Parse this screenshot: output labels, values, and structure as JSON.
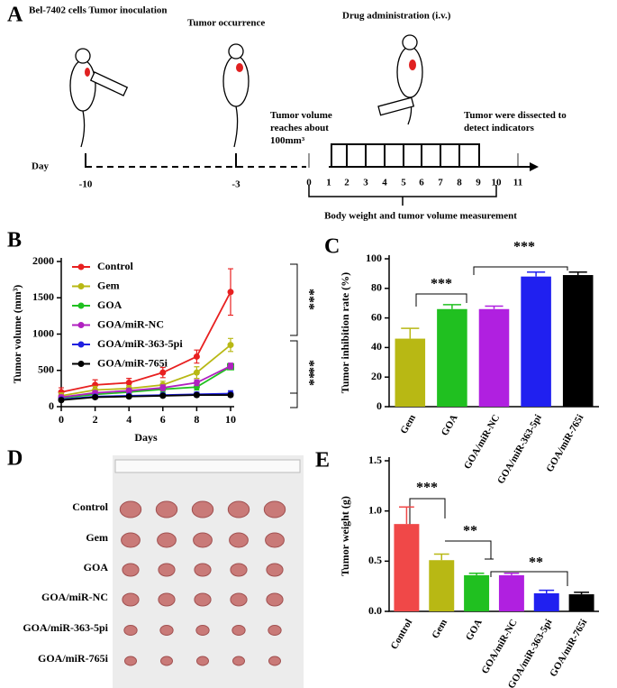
{
  "timeline": {
    "label": "A",
    "inoculation": "Bel-7402 cells Tumor inoculation",
    "occurrence": "Tumor occurrence",
    "administration": "Drug administration (i.v.)",
    "reach": "Tumor volume reaches about 100mm³",
    "dissect": "Tumor were dissected to detect indicators",
    "day_label": "Day",
    "pre_days": [
      "-10",
      "-3"
    ],
    "days": [
      0,
      1,
      2,
      3,
      4,
      5,
      6,
      7,
      8,
      9,
      10,
      11
    ],
    "measure": "Body weight and tumor volume measurement"
  },
  "photo": {
    "label": "D",
    "rows": [
      "Control",
      "Gem",
      "GOA",
      "GOA/miR-NC",
      "GOA/miR-363-5pi",
      "GOA/miR-765i"
    ]
  },
  "chart_data": [
    {
      "type": "line",
      "label": "B",
      "xlabel": "Days",
      "ylabel": "Tumor volume (mm³)",
      "x": [
        0,
        2,
        4,
        6,
        8,
        10
      ],
      "xlim": [
        0,
        10
      ],
      "xticks": [
        0,
        2,
        4,
        6,
        8,
        10
      ],
      "ylim": [
        0,
        2000
      ],
      "yticks": [
        0,
        500,
        1000,
        1500,
        2000
      ],
      "legend": "top-left",
      "series": [
        {
          "name": "Control",
          "color": "#e82020",
          "values": [
            200,
            300,
            330,
            470,
            690,
            1580
          ],
          "errors": [
            60,
            70,
            60,
            70,
            90,
            320
          ]
        },
        {
          "name": "Gem",
          "color": "#b8b814",
          "values": [
            150,
            230,
            250,
            300,
            470,
            850
          ],
          "errors": [
            40,
            50,
            40,
            50,
            80,
            90
          ]
        },
        {
          "name": "GOA",
          "color": "#20c020",
          "values": [
            120,
            170,
            200,
            240,
            270,
            550
          ],
          "errors": [
            30,
            30,
            30,
            40,
            40,
            40
          ]
        },
        {
          "name": "GOA/miR-NC",
          "color": "#b020c0",
          "values": [
            130,
            190,
            220,
            260,
            330,
            560
          ],
          "errors": [
            30,
            30,
            30,
            40,
            40,
            40
          ]
        },
        {
          "name": "GOA/miR-363-5pi",
          "color": "#2020e0",
          "values": [
            100,
            140,
            150,
            160,
            170,
            180
          ],
          "errors": [
            20,
            20,
            20,
            20,
            30,
            40
          ]
        },
        {
          "name": "GOA/miR-765i",
          "color": "#000000",
          "values": [
            90,
            130,
            140,
            150,
            160,
            160
          ],
          "errors": [
            20,
            20,
            20,
            20,
            20,
            20
          ]
        }
      ],
      "annotations": [
        "***",
        "**",
        "**"
      ]
    },
    {
      "type": "bar",
      "label": "C",
      "ylabel": "Tumor inhibition rate (%)",
      "categories": [
        "Gem",
        "GOA",
        "GOA/miR-NC",
        "GOA/miR-363-5pi",
        "GOA/miR-765i"
      ],
      "values": [
        46,
        66,
        66,
        88,
        89
      ],
      "errors": [
        7,
        3,
        2,
        3,
        2
      ],
      "colors": [
        "#b8b814",
        "#20c020",
        "#b020e0",
        "#2020f0",
        "#000000"
      ],
      "ylim": [
        0,
        100
      ],
      "yticks": [
        0,
        20,
        40,
        60,
        80,
        100
      ],
      "annotations": [
        "***",
        "***"
      ]
    },
    {
      "type": "bar",
      "label": "E",
      "ylabel": "Tumor weight (g)",
      "categories": [
        "Control",
        "Gem",
        "GOA",
        "GOA/miR-NC",
        "GOA/miR-363-5pi",
        "GOA/miR-765i"
      ],
      "values": [
        0.87,
        0.51,
        0.36,
        0.36,
        0.18,
        0.17
      ],
      "errors": [
        0.17,
        0.06,
        0.02,
        0.02,
        0.03,
        0.02
      ],
      "colors": [
        "#f04848",
        "#b8b814",
        "#20c020",
        "#b020e0",
        "#2020f0",
        "#000000"
      ],
      "ylim": [
        0,
        1.5
      ],
      "yticks": [
        {
          "value": 0,
          "label": "0.0"
        },
        {
          "value": 0.5,
          "label": "0.5"
        },
        {
          "value": 1,
          "label": "1.0"
        },
        {
          "value": 1.5,
          "label": "1.5"
        }
      ],
      "annotations": [
        "***",
        "**",
        "**"
      ]
    }
  ]
}
